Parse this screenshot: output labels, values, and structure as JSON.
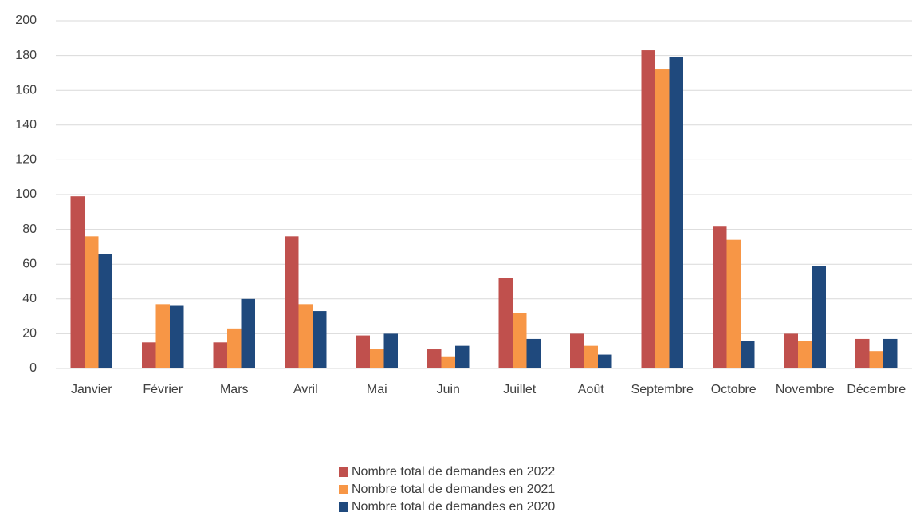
{
  "chart_data": {
    "type": "bar",
    "categories": [
      "Janvier",
      "Février",
      "Mars",
      "Avril",
      "Mai",
      "Juin",
      "Juillet",
      "Août",
      "Septembre",
      "Octobre",
      "Novembre",
      "Décembre"
    ],
    "series": [
      {
        "name": "Nombre total de demandes en 2022",
        "color": "#c0504d",
        "values": [
          99,
          15,
          15,
          76,
          19,
          11,
          52,
          20,
          183,
          82,
          20,
          17
        ]
      },
      {
        "name": "Nombre total de demandes en 2021",
        "color": "#f79646",
        "values": [
          76,
          37,
          23,
          37,
          11,
          7,
          32,
          13,
          172,
          74,
          16,
          10
        ]
      },
      {
        "name": "Nombre total de demandes en 2020",
        "color": "#1f497d",
        "values": [
          66,
          36,
          40,
          33,
          20,
          13,
          17,
          8,
          179,
          16,
          59,
          17
        ]
      }
    ],
    "ylim": [
      0,
      200
    ],
    "yticks": [
      0,
      20,
      40,
      60,
      80,
      100,
      120,
      140,
      160,
      180,
      200
    ],
    "grid": true,
    "legend": "bottom"
  }
}
